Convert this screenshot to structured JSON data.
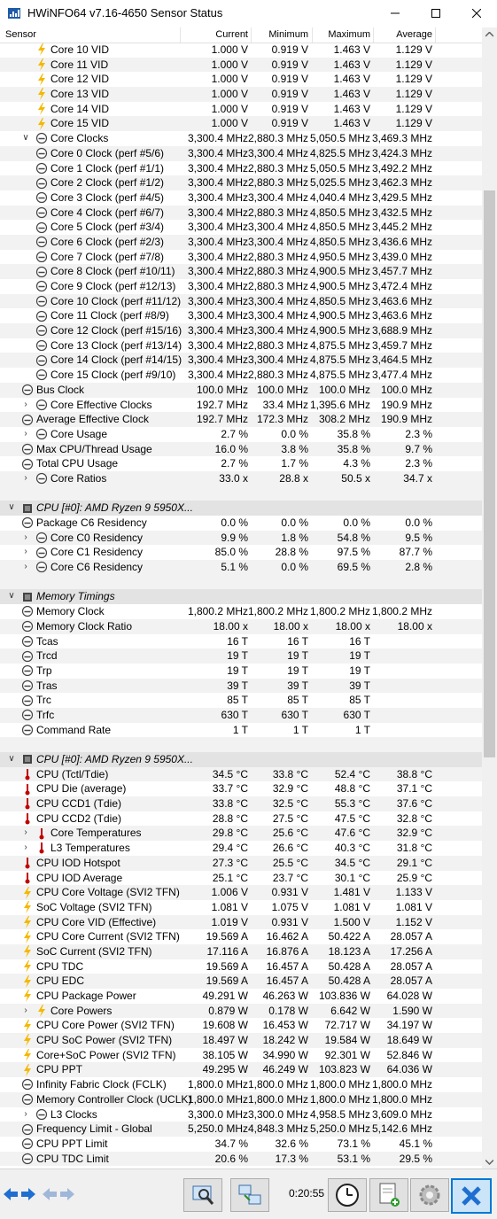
{
  "window": {
    "title": "HWiNFO64 v7.16-4650 Sensor Status"
  },
  "columns": {
    "sensor": "Sensor",
    "current": "Current",
    "minimum": "Minimum",
    "maximum": "Maximum",
    "average": "Average"
  },
  "rows": [
    {
      "t": "r",
      "lvl": 2,
      "ic": "volt",
      "n": "Core 10 VID",
      "v": [
        "1.000 V",
        "0.919 V",
        "1.463 V",
        "1.129 V"
      ]
    },
    {
      "t": "r",
      "lvl": 2,
      "ic": "volt",
      "n": "Core 11 VID",
      "v": [
        "1.000 V",
        "0.919 V",
        "1.463 V",
        "1.129 V"
      ]
    },
    {
      "t": "r",
      "lvl": 2,
      "ic": "volt",
      "n": "Core 12 VID",
      "v": [
        "1.000 V",
        "0.919 V",
        "1.463 V",
        "1.129 V"
      ]
    },
    {
      "t": "r",
      "lvl": 2,
      "ic": "volt",
      "n": "Core 13 VID",
      "v": [
        "1.000 V",
        "0.919 V",
        "1.463 V",
        "1.129 V"
      ]
    },
    {
      "t": "r",
      "lvl": 2,
      "ic": "volt",
      "n": "Core 14 VID",
      "v": [
        "1.000 V",
        "0.919 V",
        "1.463 V",
        "1.129 V"
      ]
    },
    {
      "t": "r",
      "lvl": 2,
      "ic": "volt",
      "n": "Core 15 VID",
      "v": [
        "1.000 V",
        "0.919 V",
        "1.463 V",
        "1.129 V"
      ]
    },
    {
      "t": "r",
      "lvl": 1,
      "ic": "gauge",
      "ex": "down",
      "n": "Core Clocks",
      "v": [
        "3,300.4 MHz",
        "2,880.3 MHz",
        "5,050.5 MHz",
        "3,469.3 MHz"
      ]
    },
    {
      "t": "r",
      "lvl": 2,
      "ic": "gauge",
      "n": "Core 0 Clock (perf #5/6)",
      "v": [
        "3,300.4 MHz",
        "3,300.4 MHz",
        "4,825.5 MHz",
        "3,424.3 MHz"
      ]
    },
    {
      "t": "r",
      "lvl": 2,
      "ic": "gauge",
      "n": "Core 1 Clock (perf #1/1)",
      "v": [
        "3,300.4 MHz",
        "2,880.3 MHz",
        "5,050.5 MHz",
        "3,492.2 MHz"
      ]
    },
    {
      "t": "r",
      "lvl": 2,
      "ic": "gauge",
      "n": "Core 2 Clock (perf #1/2)",
      "v": [
        "3,300.4 MHz",
        "2,880.3 MHz",
        "5,025.5 MHz",
        "3,462.3 MHz"
      ]
    },
    {
      "t": "r",
      "lvl": 2,
      "ic": "gauge",
      "n": "Core 3 Clock (perf #4/5)",
      "v": [
        "3,300.4 MHz",
        "3,300.4 MHz",
        "4,040.4 MHz",
        "3,429.5 MHz"
      ]
    },
    {
      "t": "r",
      "lvl": 2,
      "ic": "gauge",
      "n": "Core 4 Clock (perf #6/7)",
      "v": [
        "3,300.4 MHz",
        "2,880.3 MHz",
        "4,850.5 MHz",
        "3,432.5 MHz"
      ]
    },
    {
      "t": "r",
      "lvl": 2,
      "ic": "gauge",
      "n": "Core 5 Clock (perf #3/4)",
      "v": [
        "3,300.4 MHz",
        "3,300.4 MHz",
        "4,850.5 MHz",
        "3,445.2 MHz"
      ]
    },
    {
      "t": "r",
      "lvl": 2,
      "ic": "gauge",
      "n": "Core 6 Clock (perf #2/3)",
      "v": [
        "3,300.4 MHz",
        "3,300.4 MHz",
        "4,850.5 MHz",
        "3,436.6 MHz"
      ]
    },
    {
      "t": "r",
      "lvl": 2,
      "ic": "gauge",
      "n": "Core 7 Clock (perf #7/8)",
      "v": [
        "3,300.4 MHz",
        "2,880.3 MHz",
        "4,950.5 MHz",
        "3,439.0 MHz"
      ]
    },
    {
      "t": "r",
      "lvl": 2,
      "ic": "gauge",
      "n": "Core 8 Clock (perf #10/11)",
      "v": [
        "3,300.4 MHz",
        "2,880.3 MHz",
        "4,900.5 MHz",
        "3,457.7 MHz"
      ]
    },
    {
      "t": "r",
      "lvl": 2,
      "ic": "gauge",
      "n": "Core 9 Clock (perf #12/13)",
      "v": [
        "3,300.4 MHz",
        "2,880.3 MHz",
        "4,900.5 MHz",
        "3,472.4 MHz"
      ]
    },
    {
      "t": "r",
      "lvl": 2,
      "ic": "gauge",
      "n": "Core 10 Clock (perf #11/12)",
      "v": [
        "3,300.4 MHz",
        "3,300.4 MHz",
        "4,850.5 MHz",
        "3,463.6 MHz"
      ]
    },
    {
      "t": "r",
      "lvl": 2,
      "ic": "gauge",
      "n": "Core 11 Clock (perf #8/9)",
      "v": [
        "3,300.4 MHz",
        "3,300.4 MHz",
        "4,900.5 MHz",
        "3,463.6 MHz"
      ]
    },
    {
      "t": "r",
      "lvl": 2,
      "ic": "gauge",
      "n": "Core 12 Clock (perf #15/16)",
      "v": [
        "3,300.4 MHz",
        "3,300.4 MHz",
        "4,900.5 MHz",
        "3,688.9 MHz"
      ]
    },
    {
      "t": "r",
      "lvl": 2,
      "ic": "gauge",
      "n": "Core 13 Clock (perf #13/14)",
      "v": [
        "3,300.4 MHz",
        "2,880.3 MHz",
        "4,875.5 MHz",
        "3,459.7 MHz"
      ]
    },
    {
      "t": "r",
      "lvl": 2,
      "ic": "gauge",
      "n": "Core 14 Clock (perf #14/15)",
      "v": [
        "3,300.4 MHz",
        "3,300.4 MHz",
        "4,875.5 MHz",
        "3,464.5 MHz"
      ]
    },
    {
      "t": "r",
      "lvl": 2,
      "ic": "gauge",
      "n": "Core 15 Clock (perf #9/10)",
      "v": [
        "3,300.4 MHz",
        "2,880.3 MHz",
        "4,875.5 MHz",
        "3,477.4 MHz"
      ]
    },
    {
      "t": "r",
      "lvl": 0,
      "ic": "gauge",
      "n": "Bus Clock",
      "v": [
        "100.0 MHz",
        "100.0 MHz",
        "100.0 MHz",
        "100.0 MHz"
      ]
    },
    {
      "t": "r",
      "lvl": 1,
      "ic": "gauge",
      "ex": "right",
      "n": "Core Effective Clocks",
      "v": [
        "192.7 MHz",
        "33.4 MHz",
        "1,395.6 MHz",
        "190.9 MHz"
      ]
    },
    {
      "t": "r",
      "lvl": 0,
      "ic": "gauge",
      "n": "Average Effective Clock",
      "v": [
        "192.7 MHz",
        "172.3 MHz",
        "308.2 MHz",
        "190.9 MHz"
      ]
    },
    {
      "t": "r",
      "lvl": 1,
      "ic": "gauge",
      "ex": "right",
      "n": "Core Usage",
      "v": [
        "2.7 %",
        "0.0 %",
        "35.8 %",
        "2.3 %"
      ]
    },
    {
      "t": "r",
      "lvl": 0,
      "ic": "gauge",
      "n": "Max CPU/Thread Usage",
      "v": [
        "16.0 %",
        "3.8 %",
        "35.8 %",
        "9.7 %"
      ]
    },
    {
      "t": "r",
      "lvl": 0,
      "ic": "gauge",
      "n": "Total CPU Usage",
      "v": [
        "2.7 %",
        "1.7 %",
        "4.3 %",
        "2.3 %"
      ]
    },
    {
      "t": "r",
      "lvl": 1,
      "ic": "gauge",
      "ex": "right",
      "n": "Core Ratios",
      "v": [
        "33.0 x",
        "28.8 x",
        "50.5 x",
        "34.7 x"
      ]
    },
    {
      "t": "b"
    },
    {
      "t": "g",
      "n": "CPU [#0]: AMD Ryzen 9 5950X..."
    },
    {
      "t": "r",
      "lvl": 0,
      "ic": "gauge",
      "n": "Package C6 Residency",
      "v": [
        "0.0 %",
        "0.0 %",
        "0.0 %",
        "0.0 %"
      ]
    },
    {
      "t": "r",
      "lvl": 1,
      "ic": "gauge",
      "ex": "right",
      "n": "Core C0 Residency",
      "v": [
        "9.9 %",
        "1.8 %",
        "54.8 %",
        "9.5 %"
      ]
    },
    {
      "t": "r",
      "lvl": 1,
      "ic": "gauge",
      "ex": "right",
      "n": "Core C1 Residency",
      "v": [
        "85.0 %",
        "28.8 %",
        "97.5 %",
        "87.7 %"
      ]
    },
    {
      "t": "r",
      "lvl": 1,
      "ic": "gauge",
      "ex": "right",
      "n": "Core C6 Residency",
      "v": [
        "5.1 %",
        "0.0 %",
        "69.5 %",
        "2.8 %"
      ]
    },
    {
      "t": "b"
    },
    {
      "t": "g",
      "n": "Memory Timings"
    },
    {
      "t": "r",
      "lvl": 0,
      "ic": "gauge",
      "n": "Memory Clock",
      "v": [
        "1,800.2 MHz",
        "1,800.2 MHz",
        "1,800.2 MHz",
        "1,800.2 MHz"
      ]
    },
    {
      "t": "r",
      "lvl": 0,
      "ic": "gauge",
      "n": "Memory Clock Ratio",
      "v": [
        "18.00 x",
        "18.00 x",
        "18.00 x",
        "18.00 x"
      ]
    },
    {
      "t": "r",
      "lvl": 0,
      "ic": "gauge",
      "n": "Tcas",
      "v": [
        "16 T",
        "16 T",
        "16 T",
        ""
      ]
    },
    {
      "t": "r",
      "lvl": 0,
      "ic": "gauge",
      "n": "Trcd",
      "v": [
        "19 T",
        "19 T",
        "19 T",
        ""
      ]
    },
    {
      "t": "r",
      "lvl": 0,
      "ic": "gauge",
      "n": "Trp",
      "v": [
        "19 T",
        "19 T",
        "19 T",
        ""
      ]
    },
    {
      "t": "r",
      "lvl": 0,
      "ic": "gauge",
      "n": "Tras",
      "v": [
        "39 T",
        "39 T",
        "39 T",
        ""
      ]
    },
    {
      "t": "r",
      "lvl": 0,
      "ic": "gauge",
      "n": "Trc",
      "v": [
        "85 T",
        "85 T",
        "85 T",
        ""
      ]
    },
    {
      "t": "r",
      "lvl": 0,
      "ic": "gauge",
      "n": "Trfc",
      "v": [
        "630 T",
        "630 T",
        "630 T",
        ""
      ]
    },
    {
      "t": "r",
      "lvl": 0,
      "ic": "gauge",
      "n": "Command Rate",
      "v": [
        "1 T",
        "1 T",
        "1 T",
        ""
      ]
    },
    {
      "t": "b"
    },
    {
      "t": "g",
      "n": "CPU [#0]: AMD Ryzen 9 5950X..."
    },
    {
      "t": "r",
      "lvl": 0,
      "ic": "temp",
      "n": "CPU (Tctl/Tdie)",
      "v": [
        "34.5 °C",
        "33.8 °C",
        "52.4 °C",
        "38.8 °C"
      ]
    },
    {
      "t": "r",
      "lvl": 0,
      "ic": "temp",
      "n": "CPU Die (average)",
      "v": [
        "33.7 °C",
        "32.9 °C",
        "48.8 °C",
        "37.1 °C"
      ]
    },
    {
      "t": "r",
      "lvl": 0,
      "ic": "temp",
      "n": "CPU CCD1 (Tdie)",
      "v": [
        "33.8 °C",
        "32.5 °C",
        "55.3 °C",
        "37.6 °C"
      ]
    },
    {
      "t": "r",
      "lvl": 0,
      "ic": "temp",
      "n": "CPU CCD2 (Tdie)",
      "v": [
        "28.8 °C",
        "27.5 °C",
        "47.5 °C",
        "32.8 °C"
      ]
    },
    {
      "t": "r",
      "lvl": 1,
      "ic": "temp",
      "ex": "right",
      "n": "Core Temperatures",
      "v": [
        "29.8 °C",
        "25.6 °C",
        "47.6 °C",
        "32.9 °C"
      ]
    },
    {
      "t": "r",
      "lvl": 1,
      "ic": "temp",
      "ex": "right",
      "n": "L3 Temperatures",
      "v": [
        "29.4 °C",
        "26.6 °C",
        "40.3 °C",
        "31.8 °C"
      ]
    },
    {
      "t": "r",
      "lvl": 0,
      "ic": "temp",
      "n": "CPU IOD Hotspot",
      "v": [
        "27.3 °C",
        "25.5 °C",
        "34.5 °C",
        "29.1 °C"
      ]
    },
    {
      "t": "r",
      "lvl": 0,
      "ic": "temp",
      "n": "CPU IOD Average",
      "v": [
        "25.1 °C",
        "23.7 °C",
        "30.1 °C",
        "25.9 °C"
      ]
    },
    {
      "t": "r",
      "lvl": 0,
      "ic": "volt",
      "n": "CPU Core Voltage (SVI2 TFN)",
      "v": [
        "1.006 V",
        "0.931 V",
        "1.481 V",
        "1.133 V"
      ]
    },
    {
      "t": "r",
      "lvl": 0,
      "ic": "volt",
      "n": "SoC Voltage (SVI2 TFN)",
      "v": [
        "1.081 V",
        "1.075 V",
        "1.081 V",
        "1.081 V"
      ]
    },
    {
      "t": "r",
      "lvl": 0,
      "ic": "volt",
      "n": "CPU Core VID (Effective)",
      "v": [
        "1.019 V",
        "0.931 V",
        "1.500 V",
        "1.152 V"
      ]
    },
    {
      "t": "r",
      "lvl": 0,
      "ic": "volt",
      "n": "CPU Core Current (SVI2 TFN)",
      "v": [
        "19.569 A",
        "16.462 A",
        "50.422 A",
        "28.057 A"
      ]
    },
    {
      "t": "r",
      "lvl": 0,
      "ic": "volt",
      "n": "SoC Current (SVI2 TFN)",
      "v": [
        "17.116 A",
        "16.876 A",
        "18.123 A",
        "17.256 A"
      ]
    },
    {
      "t": "r",
      "lvl": 0,
      "ic": "volt",
      "n": "CPU TDC",
      "v": [
        "19.569 A",
        "16.457 A",
        "50.428 A",
        "28.057 A"
      ]
    },
    {
      "t": "r",
      "lvl": 0,
      "ic": "volt",
      "n": "CPU EDC",
      "v": [
        "19.569 A",
        "16.457 A",
        "50.428 A",
        "28.057 A"
      ]
    },
    {
      "t": "r",
      "lvl": 0,
      "ic": "volt",
      "n": "CPU Package Power",
      "v": [
        "49.291 W",
        "46.263 W",
        "103.836 W",
        "64.028 W"
      ]
    },
    {
      "t": "r",
      "lvl": 1,
      "ic": "volt",
      "ex": "right",
      "n": "Core Powers",
      "v": [
        "0.879 W",
        "0.178 W",
        "6.642 W",
        "1.590 W"
      ]
    },
    {
      "t": "r",
      "lvl": 0,
      "ic": "volt",
      "n": "CPU Core Power (SVI2 TFN)",
      "v": [
        "19.608 W",
        "16.453 W",
        "72.717 W",
        "34.197 W"
      ]
    },
    {
      "t": "r",
      "lvl": 0,
      "ic": "volt",
      "n": "CPU SoC Power (SVI2 TFN)",
      "v": [
        "18.497 W",
        "18.242 W",
        "19.584 W",
        "18.649 W"
      ]
    },
    {
      "t": "r",
      "lvl": 0,
      "ic": "volt",
      "n": "Core+SoC Power (SVI2 TFN)",
      "v": [
        "38.105 W",
        "34.990 W",
        "92.301 W",
        "52.846 W"
      ]
    },
    {
      "t": "r",
      "lvl": 0,
      "ic": "volt",
      "n": "CPU PPT",
      "v": [
        "49.295 W",
        "46.249 W",
        "103.823 W",
        "64.036 W"
      ]
    },
    {
      "t": "r",
      "lvl": 0,
      "ic": "gauge",
      "n": "Infinity Fabric Clock (FCLK)",
      "v": [
        "1,800.0 MHz",
        "1,800.0 MHz",
        "1,800.0 MHz",
        "1,800.0 MHz"
      ]
    },
    {
      "t": "r",
      "lvl": 0,
      "ic": "gauge",
      "n": "Memory Controller Clock (UCLK)",
      "v": [
        "1,800.0 MHz",
        "1,800.0 MHz",
        "1,800.0 MHz",
        "1,800.0 MHz"
      ]
    },
    {
      "t": "r",
      "lvl": 1,
      "ic": "gauge",
      "ex": "right",
      "n": "L3 Clocks",
      "v": [
        "3,300.0 MHz",
        "3,300.0 MHz",
        "4,958.5 MHz",
        "3,609.0 MHz"
      ]
    },
    {
      "t": "r",
      "lvl": 0,
      "ic": "gauge",
      "n": "Frequency Limit - Global",
      "v": [
        "5,250.0 MHz",
        "4,848.3 MHz",
        "5,250.0 MHz",
        "5,142.6 MHz"
      ]
    },
    {
      "t": "r",
      "lvl": 0,
      "ic": "gauge",
      "n": "CPU PPT Limit",
      "v": [
        "34.7 %",
        "32.6 %",
        "73.1 %",
        "45.1 %"
      ]
    },
    {
      "t": "r",
      "lvl": 0,
      "ic": "gauge",
      "n": "CPU TDC Limit",
      "v": [
        "20.6 %",
        "17.3 %",
        "53.1 %",
        "29.5 %"
      ]
    }
  ],
  "toolbar": {
    "elapsed_time": "0:20:55"
  },
  "icons": {
    "volt": "lightning-icon",
    "gauge": "gauge-icon",
    "temp": "thermometer-icon",
    "chip": "chip-icon"
  },
  "colors": {
    "volt": "#f4b800",
    "temp": "#c00000",
    "accent": "#0078d7"
  }
}
